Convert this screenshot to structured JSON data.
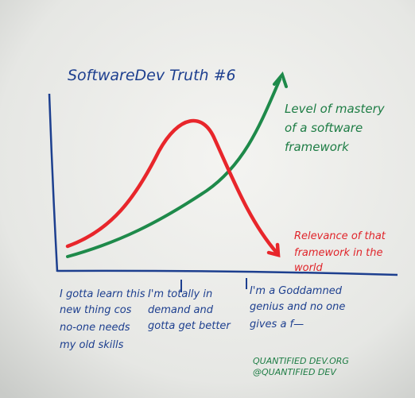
{
  "title": "SoftwareDev Truth #6",
  "series_labels": {
    "mastery": [
      "Level of mastery",
      "of a software",
      "framework"
    ],
    "relevance": [
      "Relevance of that",
      "framework in the",
      "world"
    ]
  },
  "annotations": [
    [
      "I gotta learn this",
      "new thing cos",
      "no-one needs",
      "my old skills"
    ],
    [
      "I'm totally in",
      "demand and",
      "gotta get better"
    ],
    [
      "I'm a Goddamned",
      "genius and no one",
      "gives a f—"
    ]
  ],
  "credits": [
    "QUANTIFIED DEV.ORG",
    "@QUANTIFIED DEV"
  ]
}
